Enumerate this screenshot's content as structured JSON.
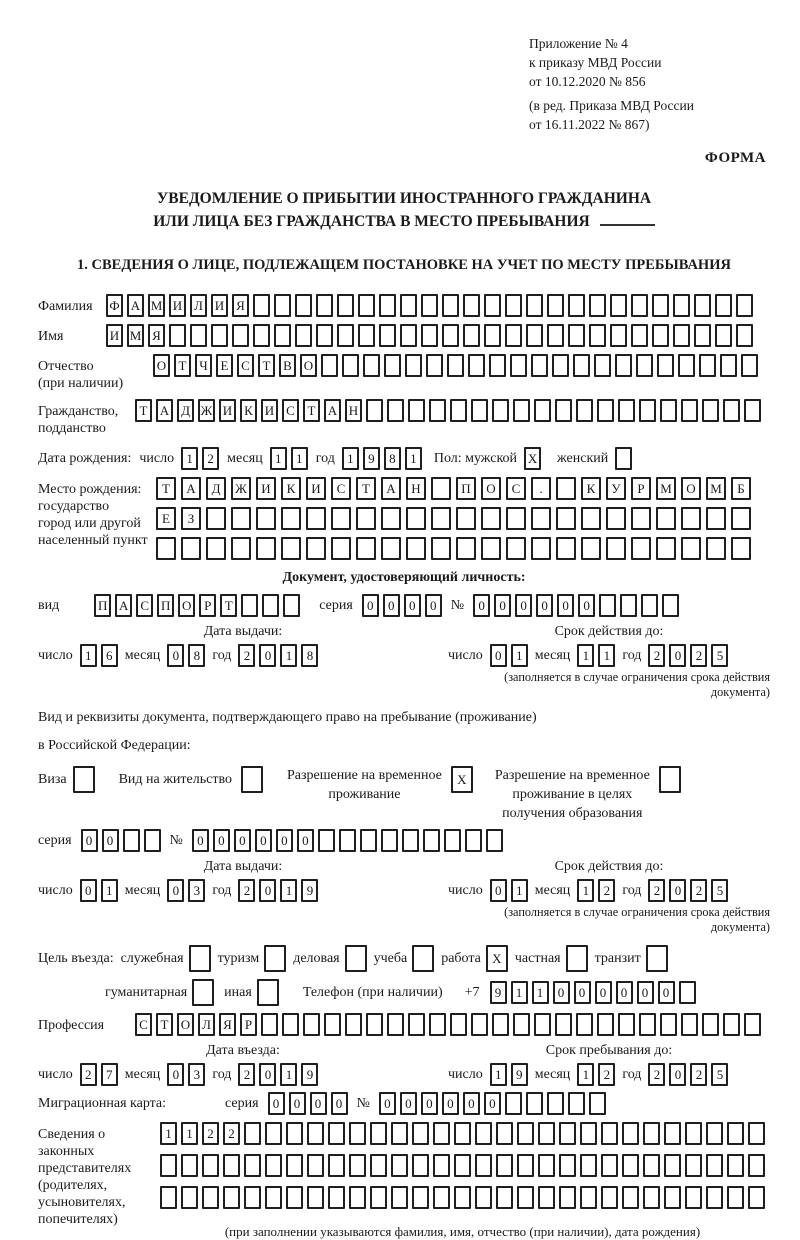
{
  "appendix": {
    "lines": [
      "Приложение № 4",
      "к приказу МВД России",
      "от 10.12.2020 № 856",
      "(в ред. Приказа МВД России",
      "от 16.11.2022 № 867)"
    ]
  },
  "form_label": "ФОРМА",
  "title": {
    "line1": "УВЕДОМЛЕНИЕ О ПРИБЫТИИ ИНОСТРАННОГО ГРАЖДАНИНА",
    "line2": "ИЛИ ЛИЦА БЕЗ ГРАЖДАНСТВА В МЕСТО ПРЕБЫВАНИЯ"
  },
  "section1_heading": "1. СВЕДЕНИЯ О ЛИЦЕ, ПОДЛЕЖАЩЕМ ПОСТАНОВКЕ НА УЧЕТ ПО МЕСТУ ПРЕБЫВАНИЯ",
  "labels": {
    "surname": "Фамилия",
    "given_name": "Имя",
    "patronymic_1": "Отчество",
    "patronymic_2": "(при наличии)",
    "citizenship_1": "Гражданство,",
    "citizenship_2": "подданство",
    "birth_date": "Дата рождения:",
    "day": "число",
    "month": "месяц",
    "year": "год",
    "sex": "Пол: мужской",
    "female": "женский",
    "birth_place_1": "Место рождения:",
    "birth_place_2": "государство",
    "birth_place_3": "город или другой",
    "birth_place_4": "населенный пункт",
    "identity_doc_heading": "Документ, удостоверяющий личность:",
    "doc_type": "вид",
    "series": "серия",
    "number_sign": "№",
    "issue_date": "Дата выдачи:",
    "valid_until": "Срок действия до:",
    "valid_note": "(заполняется в случае ограничения срока действия документа)",
    "residence_doc_line1": "Вид и реквизиты документа, подтверждающего право на пребывание (проживание)",
    "residence_doc_line2": "в Российской Федерации:",
    "visa": "Виза",
    "residence_permit": "Вид на жительство",
    "temp_residence_1": "Разрешение на временное",
    "temp_residence_2": "проживание",
    "temp_residence_edu_1": "Разрешение на временное",
    "temp_residence_edu_2": "проживание в целях",
    "temp_residence_edu_3": "получения образования",
    "entry_purpose": "Цель въезда:",
    "purpose_business": "служебная",
    "purpose_tourism": "туризм",
    "purpose_commercial": "деловая",
    "purpose_study": "учеба",
    "purpose_work": "работа",
    "purpose_private": "частная",
    "purpose_transit": "транзит",
    "purpose_humanitarian": "гуманитарная",
    "purpose_other": "иная",
    "phone": "Телефон (при наличии)",
    "phone_prefix": "+7",
    "profession": "Профессия",
    "entry_date": "Дата въезда:",
    "stay_until": "Срок пребывания до:",
    "migration_card": "Миграционная карта:",
    "reps_1": "Сведения о",
    "reps_2": "законных",
    "reps_3": "представителях",
    "reps_4": "(родителях,",
    "reps_5": "усыновителях,",
    "reps_6": "попечителях)",
    "reps_note": "(при заполнении указываются фамилия, имя, отчество (при наличии), дата рождения)"
  },
  "cells": {
    "surname": {
      "value": "ФАМИЛИЯ",
      "count": 31
    },
    "given_name": {
      "value": "ИМЯ",
      "count": 31
    },
    "patronymic": {
      "value": "ОТЧЕСТВО",
      "count": 29
    },
    "citizenship": {
      "value": "ТАДЖИКИСТАН",
      "count": 30
    },
    "birth_day": {
      "value": "12",
      "count": 2
    },
    "birth_month": {
      "value": "11",
      "count": 2
    },
    "birth_year": {
      "value": "1981",
      "count": 4
    },
    "sex_male": {
      "value": "X",
      "count": 1
    },
    "sex_female": {
      "value": "",
      "count": 1
    },
    "birth_place_row1": {
      "value": "ТАДЖИКИСТАН ПОС. КУРМОМБ",
      "count": 24
    },
    "birth_place_row2": {
      "value": "ЕЗ",
      "count": 24
    },
    "birth_place_row3": {
      "value": "",
      "count": 24
    },
    "id_doc_type": {
      "value": "ПАСПОРТ",
      "count": 10
    },
    "id_series": {
      "value": "0000",
      "count": 4
    },
    "id_number": {
      "value": "000000",
      "count": 10
    },
    "id_issue_day": {
      "value": "16",
      "count": 2
    },
    "id_issue_month": {
      "value": "08",
      "count": 2
    },
    "id_issue_year": {
      "value": "2018",
      "count": 4
    },
    "id_valid_day": {
      "value": "01",
      "count": 2
    },
    "id_valid_month": {
      "value": "11",
      "count": 2
    },
    "id_valid_year": {
      "value": "2025",
      "count": 4
    },
    "visa_box": {
      "value": "",
      "count": 1
    },
    "residence_permit_box": {
      "value": "",
      "count": 1
    },
    "temp_residence_box": {
      "value": "X",
      "count": 1
    },
    "temp_residence_edu_box": {
      "value": "",
      "count": 1
    },
    "res_series": {
      "value": "00",
      "count": 4
    },
    "res_number": {
      "value": "000000",
      "count": 15
    },
    "res_issue_day": {
      "value": "01",
      "count": 2
    },
    "res_issue_month": {
      "value": "03",
      "count": 2
    },
    "res_issue_year": {
      "value": "2019",
      "count": 4
    },
    "res_valid_day": {
      "value": "01",
      "count": 2
    },
    "res_valid_month": {
      "value": "12",
      "count": 2
    },
    "res_valid_year": {
      "value": "2025",
      "count": 4
    },
    "purpose_business_box": {
      "value": "",
      "count": 1
    },
    "purpose_tourism_box": {
      "value": "",
      "count": 1
    },
    "purpose_commercial_box": {
      "value": "",
      "count": 1
    },
    "purpose_study_box": {
      "value": "",
      "count": 1
    },
    "purpose_work_box": {
      "value": "X",
      "count": 1
    },
    "purpose_private_box": {
      "value": "",
      "count": 1
    },
    "purpose_transit_box": {
      "value": "",
      "count": 1
    },
    "purpose_humanitarian_box": {
      "value": "",
      "count": 1
    },
    "purpose_other_box": {
      "value": "",
      "count": 1
    },
    "phone_digits": {
      "value": "911000000",
      "count": 10
    },
    "profession": {
      "value": "СТОЛЯР",
      "count": 30
    },
    "entry_day": {
      "value": "27",
      "count": 2
    },
    "entry_month": {
      "value": "03",
      "count": 2
    },
    "entry_year": {
      "value": "2019",
      "count": 4
    },
    "stay_day": {
      "value": "19",
      "count": 2
    },
    "stay_month": {
      "value": "12",
      "count": 2
    },
    "stay_year": {
      "value": "2025",
      "count": 4
    },
    "mig_series": {
      "value": "0000",
      "count": 4
    },
    "mig_number": {
      "value": "000000",
      "count": 11
    },
    "reps_row1": {
      "value": "1122",
      "count": 29
    },
    "reps_row2": {
      "value": "",
      "count": 29
    },
    "reps_row3": {
      "value": "",
      "count": 29
    }
  }
}
